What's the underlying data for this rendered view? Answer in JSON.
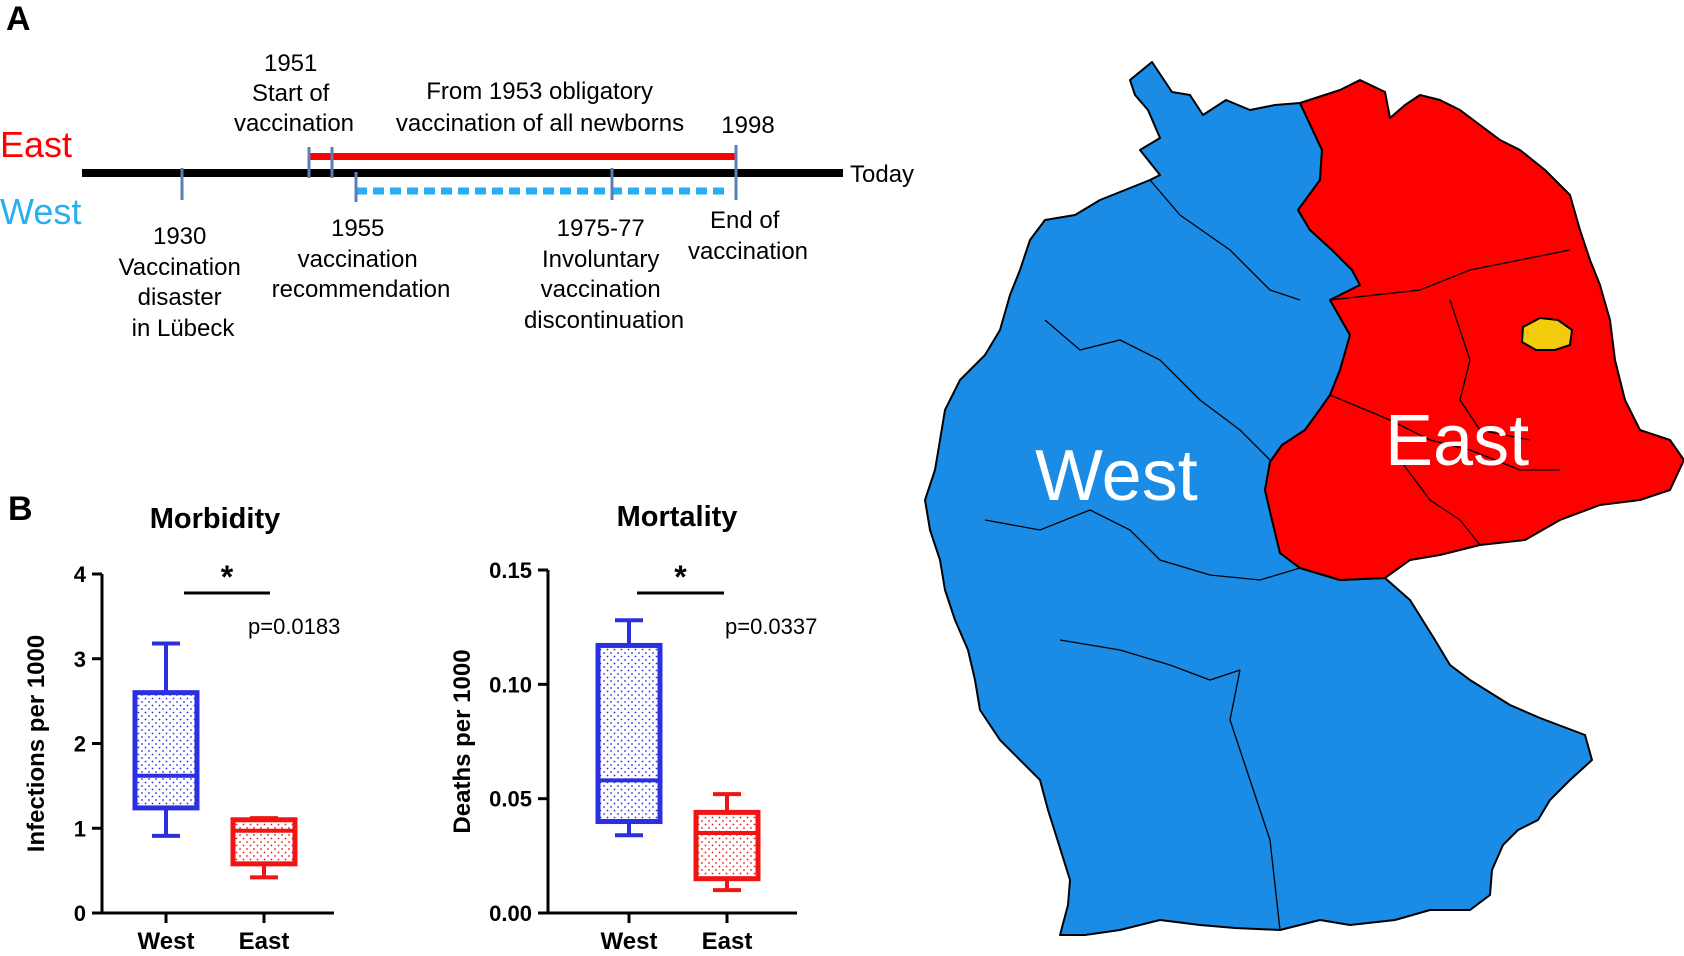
{
  "colors": {
    "east": "#ff0000",
    "west_label": "#29aef0",
    "west_map": "#1a8ce6",
    "west_box": "#2b2fe0",
    "east_box": "#f01414",
    "berlin": "#f2cc0c",
    "timeline": "#000000",
    "marker": "#5b7fb7",
    "map_border": "#000000"
  },
  "panel_a": {
    "panel_label": "A",
    "row_labels": {
      "east": "East",
      "west": "West"
    },
    "end_label": "Today",
    "above": [
      {
        "lines": [
          "1951",
          "Start of",
          "vaccination"
        ]
      },
      {
        "lines": [
          "From 1953 obligatory",
          "vaccination of all newborns"
        ]
      },
      {
        "lines": [
          "1998"
        ]
      }
    ],
    "below": [
      {
        "lines": [
          "1930",
          "Vaccination",
          "disaster",
          "in Lübeck"
        ]
      },
      {
        "lines": [
          "1955",
          "vaccination",
          "recommendation"
        ]
      },
      {
        "lines": [
          "1975-77",
          "Involuntary",
          "vaccination",
          "discontinuation"
        ]
      },
      {
        "lines": [
          "End of",
          "vaccination"
        ]
      }
    ]
  },
  "panel_b": {
    "panel_label": "B"
  },
  "map": {
    "labels": {
      "west": "West",
      "east": "East"
    },
    "regions": [
      "west",
      "east",
      "berlin"
    ]
  },
  "chart_data": [
    {
      "type": "box",
      "title": "Morbidity",
      "xlabel": "",
      "ylabel": "Infections per 1000",
      "categories": [
        "West",
        "East"
      ],
      "ylim": [
        0,
        4
      ],
      "yticks": [
        0,
        1,
        2,
        3,
        4
      ],
      "ytick_labels": [
        "0",
        "1",
        "2",
        "3",
        "4"
      ],
      "boxes": [
        {
          "category": "West",
          "min": 0.91,
          "q1": 1.24,
          "median": 1.62,
          "q3": 2.6,
          "max": 3.18
        },
        {
          "category": "East",
          "min": 0.42,
          "q1": 0.58,
          "median": 0.97,
          "q3": 1.1,
          "max": 1.12
        }
      ],
      "significance": {
        "marker": "*",
        "p_value": "p=0.0183"
      }
    },
    {
      "type": "box",
      "title": "Mortality",
      "xlabel": "",
      "ylabel": "Deaths per 1000",
      "categories": [
        "West",
        "East"
      ],
      "ylim": [
        0,
        0.15
      ],
      "yticks": [
        0,
        0.05,
        0.1,
        0.15
      ],
      "ytick_labels": [
        "0.00",
        "0.05",
        "0.10",
        "0.15"
      ],
      "boxes": [
        {
          "category": "West",
          "min": 0.034,
          "q1": 0.04,
          "median": 0.058,
          "q3": 0.117,
          "max": 0.128
        },
        {
          "category": "East",
          "min": 0.01,
          "q1": 0.015,
          "median": 0.035,
          "q3": 0.044,
          "max": 0.052
        }
      ],
      "significance": {
        "marker": "*",
        "p_value": "p=0.0337"
      }
    }
  ]
}
